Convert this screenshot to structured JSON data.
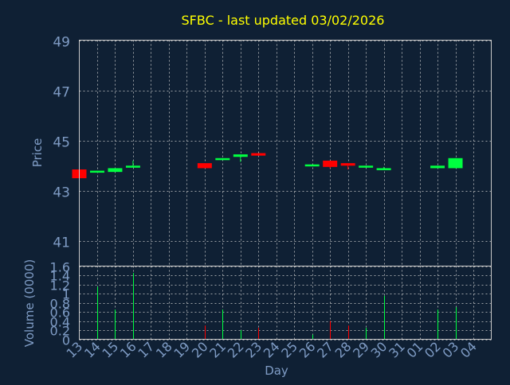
{
  "colors": {
    "background": "#0f2034",
    "title": "#ffff00",
    "axis_text": "#7f9cc5",
    "grid": "#c8c8c8",
    "frame": "#c8c8c8",
    "up": "#00ff40",
    "down": "#ff0000"
  },
  "chart_data": [
    {
      "type": "candlestick",
      "title": "SFBC - last updated 03/02/2026",
      "ylabel": "Price",
      "ylim": [
        40,
        49
      ],
      "yticks": [
        "41",
        "43",
        "45",
        "47",
        "49"
      ],
      "grid": true,
      "categories": [
        "13",
        "14",
        "15",
        "16",
        "17",
        "18",
        "19",
        "20",
        "21",
        "22",
        "23",
        "24",
        "25",
        "26",
        "27",
        "28",
        "29",
        "30",
        "31",
        "01",
        "02",
        "03",
        "04"
      ],
      "candles": [
        {
          "x": "13",
          "open": 43.85,
          "high": 43.85,
          "low": 43.5,
          "close": 43.5
        },
        {
          "x": "14",
          "open": 43.75,
          "high": 43.8,
          "low": 43.75,
          "close": 43.8
        },
        {
          "x": "15",
          "open": 43.75,
          "high": 43.9,
          "low": 43.75,
          "close": 43.9
        },
        {
          "x": "16",
          "open": 43.95,
          "high": 44.2,
          "low": 43.95,
          "close": 44.0
        },
        {
          "x": "20",
          "open": 44.1,
          "high": 44.1,
          "low": 43.9,
          "close": 43.9
        },
        {
          "x": "21",
          "open": 44.25,
          "high": 44.3,
          "low": 44.25,
          "close": 44.3
        },
        {
          "x": "22",
          "open": 44.35,
          "high": 44.45,
          "low": 44.15,
          "close": 44.45
        },
        {
          "x": "23",
          "open": 44.5,
          "high": 44.5,
          "low": 44.4,
          "close": 44.4
        },
        {
          "x": "26",
          "open": 44.0,
          "high": 44.05,
          "low": 44.0,
          "close": 44.05
        },
        {
          "x": "27",
          "open": 44.2,
          "high": 44.2,
          "low": 43.9,
          "close": 43.95
        },
        {
          "x": "28",
          "open": 44.1,
          "high": 44.1,
          "low": 43.85,
          "close": 44.0
        },
        {
          "x": "29",
          "open": 43.95,
          "high": 44.0,
          "low": 43.95,
          "close": 44.0
        },
        {
          "x": "30",
          "open": 43.85,
          "high": 43.95,
          "low": 43.85,
          "close": 43.9
        },
        {
          "x": "02",
          "open": 43.9,
          "high": 44.0,
          "low": 43.9,
          "close": 44.0
        },
        {
          "x": "03",
          "open": 43.9,
          "high": 44.3,
          "low": 43.9,
          "close": 44.3
        }
      ]
    },
    {
      "type": "bar",
      "ylabel": "Volume (0000)",
      "xlabel": "Day",
      "ylim": [
        0,
        1.6
      ],
      "yticks": [
        "0",
        "0.2",
        "0.4",
        "0.6",
        "0.8",
        "1",
        "1.2",
        "1.4",
        "1.6"
      ],
      "grid": true,
      "bars": [
        {
          "x": "14",
          "value": 1.15,
          "dir": "up"
        },
        {
          "x": "15",
          "value": 0.65,
          "dir": "up"
        },
        {
          "x": "16",
          "value": 1.45,
          "dir": "up"
        },
        {
          "x": "20",
          "value": 0.3,
          "dir": "down"
        },
        {
          "x": "21",
          "value": 0.65,
          "dir": "up"
        },
        {
          "x": "22",
          "value": 0.2,
          "dir": "up"
        },
        {
          "x": "23",
          "value": 0.25,
          "dir": "down"
        },
        {
          "x": "26",
          "value": 0.1,
          "dir": "up"
        },
        {
          "x": "27",
          "value": 0.4,
          "dir": "down"
        },
        {
          "x": "28",
          "value": 0.3,
          "dir": "down"
        },
        {
          "x": "29",
          "value": 0.25,
          "dir": "up"
        },
        {
          "x": "30",
          "value": 0.95,
          "dir": "up"
        },
        {
          "x": "02",
          "value": 0.65,
          "dir": "up"
        },
        {
          "x": "03",
          "value": 0.7,
          "dir": "up"
        }
      ]
    }
  ]
}
